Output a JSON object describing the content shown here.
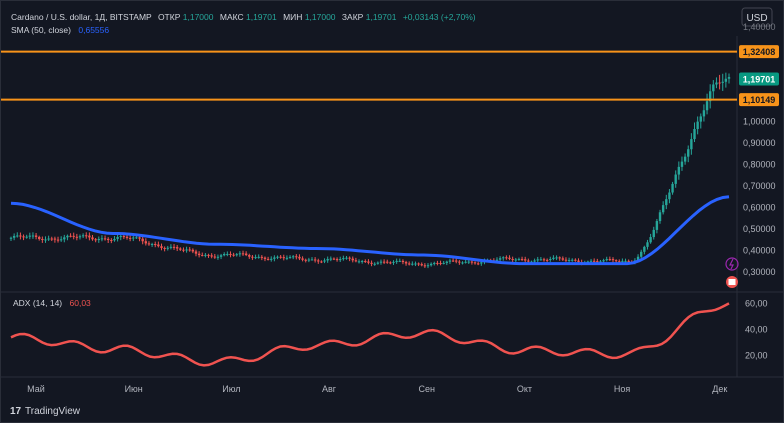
{
  "header": {
    "symbol": "Cardano / U.S. dollar, 1Д, BITSTAMP",
    "open_label": "ОТКР",
    "open": "1,17000",
    "high_label": "МАКС",
    "high": "1,19701",
    "low_label": "МИН",
    "low": "1,17000",
    "close_label": "ЗАКР",
    "close": "1,19701",
    "change": "+0,03143 (+2,70%)",
    "sma_label": "SMA (50, close)",
    "sma_value": "0,65556"
  },
  "currency_button": "USD",
  "price_axis": {
    "ticks": [
      "1,00000",
      "0,90000",
      "0,80000",
      "0,70000",
      "0,60000",
      "0,50000",
      "0,40000",
      "0,30000"
    ],
    "top_partial": "1,40000"
  },
  "levels": [
    {
      "label": "1,32408",
      "value": 1.32408,
      "color": "#f7931a"
    },
    {
      "label": "1,10149",
      "value": 1.10149,
      "color": "#f7931a"
    }
  ],
  "current_price": {
    "label": "1,19701",
    "value": 1.19701,
    "color": "#089981"
  },
  "adx": {
    "label": "ADX (14, 14)",
    "value": "60,03",
    "color": "#f05350",
    "ticks": [
      "60,00",
      "40,00",
      "20,00"
    ]
  },
  "time_axis": [
    "Май",
    "Июн",
    "Июл",
    "Авг",
    "Сен",
    "Окт",
    "Ноя",
    "Дек"
  ],
  "branding": "TradingView",
  "colors": {
    "up": "#26a69a",
    "down": "#ef5350",
    "sma": "#2962ff",
    "bg": "#131722"
  },
  "chart_data": {
    "type": "line",
    "title": "Cardano / U.S. dollar, 1Д, BITSTAMP",
    "x": [
      "Май",
      "Июн",
      "Июл",
      "Авг",
      "Сен",
      "Окт",
      "Ноя",
      "Дек"
    ],
    "ylim": [
      0.25,
      1.42
    ],
    "grid": false,
    "series": [
      {
        "name": "Cardano / U.S. dollar",
        "values": [
          0.46,
          0.46,
          0.38,
          0.36,
          0.34,
          0.36,
          0.35,
          1.19
        ]
      },
      {
        "name": "SMA (50, close)",
        "values": [
          0.62,
          0.48,
          0.43,
          0.41,
          0.38,
          0.34,
          0.34,
          0.65
        ]
      }
    ],
    "adx": {
      "name": "ADX (14, 14)",
      "ylim": [
        5,
        65
      ],
      "values": [
        34,
        25,
        15,
        28,
        37,
        24,
        21,
        60
      ]
    },
    "horizontal_levels": [
      1.32408,
      1.10149
    ]
  }
}
